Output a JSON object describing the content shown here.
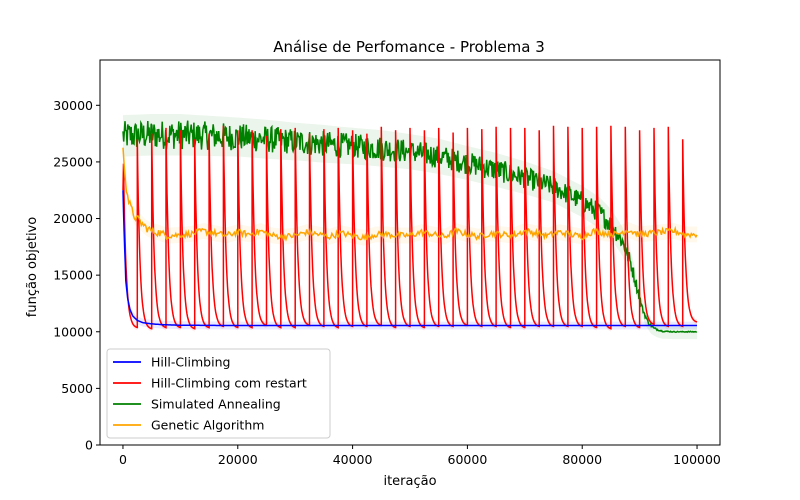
{
  "chart_data": {
    "type": "line",
    "title": "Análise de Perfomance - Problema 3",
    "xlabel": "iteração",
    "ylabel": "função objetivo",
    "xlim": [
      -4000,
      104000
    ],
    "ylim": [
      0,
      34000
    ],
    "xticks": [
      0,
      20000,
      40000,
      60000,
      80000,
      100000
    ],
    "yticks": [
      0,
      5000,
      10000,
      15000,
      20000,
      25000,
      30000
    ],
    "legend_position": "lower-left",
    "grid": false,
    "series": [
      {
        "name": "Hill-Climbing",
        "color": "#0000ff",
        "x": [
          0,
          250,
          500,
          800,
          1200,
          1700,
          2500,
          3500,
          5000,
          7000,
          10000,
          15000,
          20000,
          30000,
          40000,
          50000,
          60000,
          70000,
          80000,
          90000,
          100000
        ],
        "y": [
          22500,
          18000,
          14500,
          13000,
          12000,
          11400,
          11000,
          10800,
          10700,
          10620,
          10580,
          10560,
          10550,
          10550,
          10550,
          10550,
          10550,
          10550,
          10550,
          10550,
          10550
        ]
      },
      {
        "name": "Hill-Climbing com restart",
        "color": "#ff0000",
        "restart_period": 2500,
        "restart_peaks": [
          28000,
          27000,
          27500,
          28000,
          27800,
          27000,
          27500,
          28200,
          27800,
          27800,
          27300,
          27900,
          28000,
          27500,
          27900,
          28000,
          27800,
          27500,
          28100,
          27800,
          28000,
          27800,
          28000,
          27600,
          28000,
          27900,
          28100,
          28000,
          28000,
          27800,
          28200,
          28100,
          28000,
          28100,
          28200,
          28100,
          27800,
          28000,
          28100,
          27000
        ],
        "segment_floors": [
          10300,
          10200,
          10300,
          10300,
          10200,
          10300,
          10400,
          10300,
          10300,
          10500,
          10300,
          10300,
          10500,
          10400,
          10300,
          10400,
          10400,
          10500,
          10300,
          10400,
          10300,
          10400,
          10400,
          10500,
          10400,
          10400,
          10300,
          10300,
          10400,
          10400,
          10400,
          10400,
          10300,
          10200,
          10400,
          10300,
          10600,
          10400,
          10400,
          10800
        ]
      },
      {
        "name": "Simulated Annealing",
        "color": "#008000",
        "x": [
          0,
          5000,
          10000,
          15000,
          20000,
          25000,
          30000,
          35000,
          40000,
          45000,
          50000,
          55000,
          60000,
          65000,
          70000,
          75000,
          80000,
          83000,
          85000,
          87000,
          88500,
          89500,
          90500,
          91500,
          92500,
          94000,
          96000,
          100000
        ],
        "y": [
          27300,
          27400,
          27400,
          27300,
          27200,
          27000,
          26800,
          26600,
          26400,
          26200,
          25900,
          25500,
          24900,
          24300,
          23600,
          22800,
          21500,
          20500,
          19500,
          18000,
          16000,
          14000,
          12000,
          10800,
          10300,
          10050,
          10000,
          10000
        ],
        "noise_amplitude": [
          1300,
          1300,
          1300,
          1250,
          1200,
          1200,
          1150,
          1150,
          1100,
          1100,
          1050,
          1050,
          1000,
          1000,
          950,
          900,
          900,
          900,
          850,
          800,
          700,
          500,
          250,
          150,
          100,
          60,
          40,
          40
        ]
      },
      {
        "name": "Genetic Algorithm",
        "color": "#ffa500",
        "x": [
          0,
          200,
          500,
          1000,
          1500,
          2000,
          3000,
          4000,
          5000,
          6000,
          7000,
          8000,
          10000,
          12000,
          14000,
          16000,
          18000,
          20000,
          22000,
          24000,
          26000,
          28000,
          30000,
          32000,
          34000,
          36000,
          38000,
          40000,
          42000,
          44000,
          46000,
          48000,
          50000,
          52000,
          54000,
          56000,
          58000,
          60000,
          62000,
          64000,
          66000,
          68000,
          70000,
          72000,
          74000,
          76000,
          78000,
          80000,
          82000,
          84000,
          86000,
          88000,
          90000,
          92000,
          94000,
          96000,
          98000,
          100000
        ],
        "y": [
          26000,
          25000,
          23000,
          21500,
          20800,
          20200,
          19700,
          19200,
          18900,
          18800,
          18600,
          18500,
          18550,
          18650,
          18900,
          18700,
          18500,
          18800,
          18600,
          18900,
          18500,
          18400,
          18500,
          18800,
          18600,
          18400,
          18700,
          18500,
          18300,
          18600,
          18600,
          18500,
          18500,
          18800,
          18600,
          18400,
          18900,
          18600,
          18400,
          18700,
          18600,
          18500,
          18900,
          18700,
          18500,
          18800,
          18600,
          18400,
          18900,
          18700,
          18600,
          19000,
          18600,
          18700,
          18800,
          18900,
          18600,
          18600
        ],
        "noise_amplitude": 450
      }
    ]
  }
}
